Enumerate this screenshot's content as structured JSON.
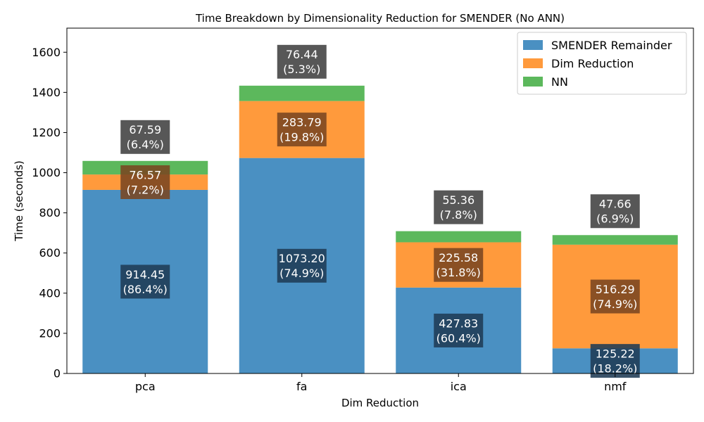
{
  "chart_data": {
    "type": "bar",
    "stacked": true,
    "title": "Time Breakdown by Dimensionality Reduction for SMENDER (No ANN)",
    "xlabel": "Dim Reduction",
    "ylabel": "Time (seconds)",
    "categories": [
      "pca",
      "fa",
      "ica",
      "nmf"
    ],
    "ylim": [
      0,
      1720
    ],
    "yticks": [
      0,
      200,
      400,
      600,
      800,
      1000,
      1200,
      1400,
      1600
    ],
    "grid": false,
    "legend_position": "top-right",
    "series": [
      {
        "name": "SMENDER Remainder",
        "color": "#4a90c2",
        "values": [
          914.45,
          1073.2,
          427.83,
          125.22
        ],
        "labels": [
          "914.45\n(86.4%)",
          "1073.20\n(74.9%)",
          "427.83\n(60.4%)",
          "125.22\n(18.2%)"
        ]
      },
      {
        "name": "Dim Reduction",
        "color": "#ff9a3c",
        "values": [
          76.57,
          283.79,
          225.58,
          516.29
        ],
        "labels": [
          "76.57\n(7.2%)",
          "283.79\n(19.8%)",
          "225.58\n(31.8%)",
          "516.29\n(74.9%)"
        ]
      },
      {
        "name": "NN",
        "color": "#5cb85c",
        "values": [
          67.59,
          76.44,
          55.36,
          47.66
        ],
        "labels": [
          "67.59\n(6.4%)",
          "76.44\n(5.3%)",
          "55.36\n(7.8%)",
          "47.66\n(6.9%)"
        ]
      }
    ]
  }
}
